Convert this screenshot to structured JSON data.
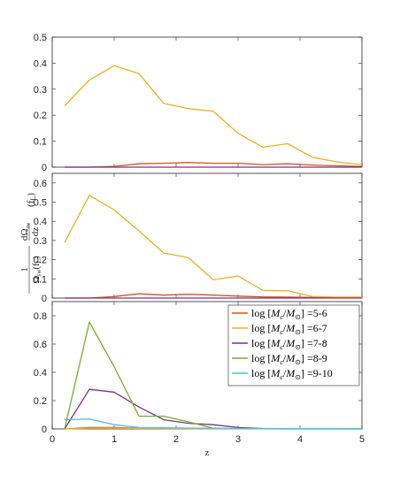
{
  "chart_data": [
    {
      "type": "line",
      "xlim": [
        0,
        5
      ],
      "ylim": [
        0,
        0.5
      ],
      "yticks": [
        "0",
        "0.1",
        "0.2",
        "0.3",
        "0.4",
        "0.5"
      ],
      "x": [
        0.2,
        0.6,
        1.0,
        1.4,
        1.8,
        2.2,
        2.6,
        3.0,
        3.4,
        3.8,
        4.2,
        4.6,
        5.0
      ],
      "series": [
        {
          "name": "log [M_c/M_⊙] =5-6",
          "color": "#d95319",
          "values": [
            0,
            0,
            0.003,
            0.013,
            0.015,
            0.018,
            0.015,
            0.015,
            0.01,
            0.013,
            0.008,
            0.005,
            0.003
          ]
        },
        {
          "name": "log [M_c/M_⊙] =6-7",
          "color": "#edb120",
          "values": [
            0.236,
            0.335,
            0.39,
            0.36,
            0.245,
            0.225,
            0.215,
            0.13,
            0.077,
            0.09,
            0.038,
            0.02,
            0.01
          ]
        },
        {
          "name": "log [M_c/M_⊙] =7-8",
          "color": "#7e2f8e",
          "values": [
            0,
            0,
            0,
            0,
            0,
            0,
            0,
            0,
            0,
            0,
            0,
            0,
            0
          ]
        }
      ]
    },
    {
      "type": "line",
      "xlim": [
        0,
        5
      ],
      "ylim": [
        0,
        0.65
      ],
      "yticks": [
        "0",
        "0.1",
        "0.2",
        "0.3",
        "0.4",
        "0.5",
        "0.6"
      ],
      "ylabel": "1/Ω_sw(f_L) dΩ_sw/dz (f_L)",
      "x": [
        0.2,
        0.6,
        1.0,
        1.4,
        1.8,
        2.2,
        2.6,
        3.0,
        3.4,
        3.8,
        4.2,
        4.6,
        5.0
      ],
      "series": [
        {
          "name": "log [M_c/M_⊙] =5-6",
          "color": "#d95319",
          "values": [
            0,
            0,
            0.008,
            0.022,
            0.015,
            0.02,
            0.015,
            0.01,
            0.006,
            0.005,
            0.003,
            0.002,
            0.001
          ]
        },
        {
          "name": "log [M_c/M_⊙] =6-7",
          "color": "#edb120",
          "values": [
            0.29,
            0.535,
            0.46,
            0.35,
            0.235,
            0.21,
            0.095,
            0.115,
            0.04,
            0.038,
            0.008,
            0.005,
            0.005
          ]
        },
        {
          "name": "log [M_c/M_⊙] =7-8",
          "color": "#7e2f8e",
          "values": [
            0,
            0,
            0,
            0,
            0,
            0,
            0,
            0,
            0,
            0,
            0,
            0,
            0
          ]
        }
      ]
    },
    {
      "type": "line",
      "xlim": [
        0,
        5
      ],
      "ylim": [
        0,
        0.9
      ],
      "yticks": [
        "0",
        "0.2",
        "0.4",
        "0.6",
        "0.8"
      ],
      "xticks": [
        "0",
        "1",
        "2",
        "3",
        "4",
        "5"
      ],
      "xlabel": "z",
      "legend_position": "top-right",
      "x": [
        0.2,
        0.6,
        1.0,
        1.4,
        1.8,
        2.2,
        2.6,
        3.0,
        3.4,
        3.8,
        4.2,
        4.6,
        5.0
      ],
      "series": [
        {
          "name": "log [M_c/M_⊙] =5-6",
          "color": "#d95319",
          "values": [
            0,
            0.01,
            0.01,
            0.005,
            0.005,
            0.004,
            0.003,
            0.002,
            0.002,
            0.001,
            0.001,
            0.001,
            0.001
          ]
        },
        {
          "name": "log [M_c/M_⊙] =6-7",
          "color": "#edb120",
          "values": [
            0,
            0.005,
            0.005,
            0.003,
            0.003,
            0.002,
            0.002,
            0.001,
            0.001,
            0.001,
            0.001,
            0.001,
            0.001
          ]
        },
        {
          "name": "log [M_c/M_⊙] =7-8",
          "color": "#7e2f8e",
          "values": [
            0.0,
            0.28,
            0.26,
            0.155,
            0.065,
            0.04,
            0.03,
            0.01,
            0.003,
            0.002,
            0.001,
            0.001,
            0.0
          ]
        },
        {
          "name": "log [M_c/M_⊙] =8-9",
          "color": "#77ac30",
          "values": [
            0.0,
            0.755,
            0.44,
            0.09,
            0.09,
            0.05,
            0.005,
            0.002,
            0.001,
            0.0,
            0.0,
            0.0,
            0.0
          ]
        },
        {
          "name": "log [M_c/M_⊙] =9-10",
          "color": "#4dbeee",
          "values": [
            0.065,
            0.07,
            0.03,
            0.01,
            0.008,
            0.006,
            0.004,
            0.003,
            0.003,
            0.002,
            0.002,
            0.002,
            0.002
          ]
        }
      ]
    }
  ],
  "legend": {
    "entries": [
      {
        "prefix": "log [",
        "m": "M",
        "sub1": "c",
        "slash": "/",
        "m2": "M",
        "sub2": "⊙",
        "suffix": "] =5-6",
        "color": "#d95319"
      },
      {
        "prefix": "log [",
        "m": "M",
        "sub1": "c",
        "slash": "/",
        "m2": "M",
        "sub2": "⊙",
        "suffix": "] =6-7",
        "color": "#edb120"
      },
      {
        "prefix": "log [",
        "m": "M",
        "sub1": "c",
        "slash": "/",
        "m2": "M",
        "sub2": "⊙",
        "suffix": "] =7-8",
        "color": "#7e2f8e"
      },
      {
        "prefix": "log [",
        "m": "M",
        "sub1": "c",
        "slash": "/",
        "m2": "M",
        "sub2": "⊙",
        "suffix": "] =8-9",
        "color": "#77ac30"
      },
      {
        "prefix": "log [",
        "m": "M",
        "sub1": "c",
        "slash": "/",
        "m2": "M",
        "sub2": "⊙",
        "suffix": "] =9-10",
        "color": "#4dbeee"
      }
    ]
  },
  "ylabel_parts": {
    "one": "1",
    "omega_den": "Ω",
    "sw_den": "sw",
    "arg_den": "(f",
    "arg_den_sub": "L",
    "arg_den_close": ")",
    "d_omega": "dΩ",
    "sw_num": "sw",
    "dz": "dz",
    "tail": "(f",
    "tail_sub": "L",
    "tail_close": ")"
  }
}
